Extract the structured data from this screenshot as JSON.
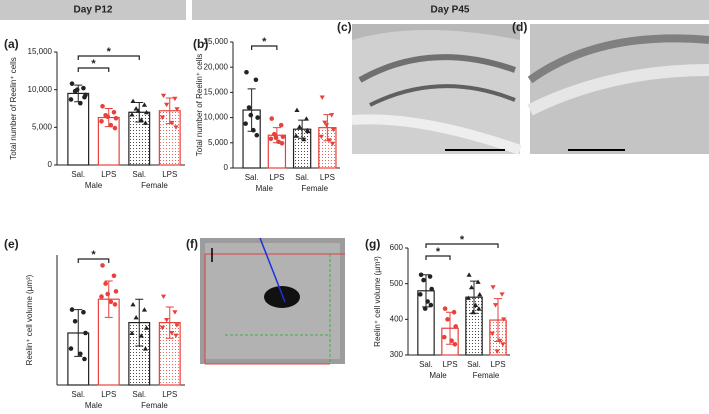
{
  "headers": [
    "Day P12",
    "Day P45"
  ],
  "image_panels": [
    "(c)",
    "(d)",
    "(f)"
  ],
  "chart_data": [
    {
      "type": "bar",
      "label": "(a)",
      "ylabel": "Total number of Reelin⁺ cells",
      "categories": [
        "Sal.",
        "LPS",
        "Sal.",
        "LPS"
      ],
      "groups": [
        "Male",
        "Female"
      ],
      "values": [
        9500,
        6300,
        7000,
        7200
      ],
      "errors": [
        1100,
        1200,
        1300,
        1700
      ],
      "points": [
        [
          10800,
          10200,
          9800,
          9300,
          8700,
          8200,
          9000,
          10000
        ],
        [
          7800,
          7000,
          6600,
          6200,
          5800,
          5300,
          4900,
          6400
        ],
        [
          8500,
          8000,
          7500,
          7000,
          6700,
          6000,
          5600,
          7200
        ],
        [
          9200,
          8800,
          8000,
          7400,
          6300,
          5600,
          5000
        ]
      ],
      "colors": [
        "#222222",
        "#e8413c",
        "#222222",
        "#e8413c"
      ],
      "hatch": [
        false,
        false,
        true,
        true
      ],
      "markers": [
        "circle",
        "circle",
        "triangle-up",
        "triangle-down"
      ],
      "ylim": [
        0,
        15000
      ],
      "yticks": [
        0,
        {
          "value": 5000,
          "label": "5,000"
        },
        {
          "value": 10000,
          "label": "10,000"
        },
        {
          "value": 15000,
          "label": "15,000"
        }
      ],
      "significance": [
        {
          "from": 0,
          "to": 1,
          "label": "*"
        },
        {
          "from": 0,
          "to": 2,
          "label": "*"
        }
      ]
    },
    {
      "type": "bar",
      "label": "(b)",
      "ylabel": "Total number of Reelin⁺ cells",
      "categories": [
        "Sal.",
        "LPS",
        "Sal.",
        "LPS"
      ],
      "groups": [
        "Male",
        "Female"
      ],
      "values": [
        11500,
        6500,
        7700,
        8000
      ],
      "errors": [
        4200,
        1500,
        1800,
        2600
      ],
      "points": [
        [
          19000,
          17500,
          12000,
          10000,
          8800,
          7500,
          6500,
          10500
        ],
        [
          9800,
          8500,
          6700,
          6200,
          5800,
          5200,
          4900,
          6000
        ],
        [
          11500,
          9800,
          8200,
          7300,
          6400,
          5700,
          7500
        ],
        [
          14000,
          10500,
          9000,
          7600,
          6200,
          5500,
          4800,
          8500
        ]
      ],
      "colors": [
        "#222222",
        "#e8413c",
        "#222222",
        "#e8413c"
      ],
      "hatch": [
        false,
        false,
        true,
        true
      ],
      "markers": [
        "circle",
        "circle",
        "triangle-up",
        "triangle-down"
      ],
      "ylim": [
        0,
        25000
      ],
      "yticks": [
        0,
        {
          "value": 5000,
          "label": "5,000"
        },
        {
          "value": 10000,
          "label": "10,000"
        },
        {
          "value": 15000,
          "label": "15,000"
        },
        {
          "value": 20000,
          "label": "20,000"
        },
        {
          "value": 25000,
          "label": "25,000"
        }
      ],
      "significance": [
        {
          "from": 0,
          "to": 1,
          "label": "*"
        }
      ]
    },
    {
      "type": "bar",
      "label": "(e)",
      "ylabel": "Reelin⁺ cell volume (µm³)",
      "categories": [
        "Sal.",
        "LPS",
        "Sal.",
        "LPS"
      ],
      "groups": [
        "Male",
        "Female"
      ],
      "values": [
        700,
        830,
        740,
        740
      ],
      "errors": [
        90,
        70,
        90,
        60
      ],
      "points": [
        [
          790,
          780,
          745,
          700,
          640,
          620,
          600
        ],
        [
          960,
          920,
          890,
          860,
          840,
          820,
          810,
          850
        ],
        [
          810,
          790,
          760,
          720,
          700,
          690,
          640
        ],
        [
          840,
          780,
          750,
          730,
          720,
          700,
          690
        ]
      ],
      "colors": [
        "#222222",
        "#e8413c",
        "#222222",
        "#e8413c"
      ],
      "hatch": [
        false,
        false,
        true,
        true
      ],
      "markers": [
        "circle",
        "circle",
        "triangle-up",
        "triangle-down"
      ],
      "ylim": [
        500,
        1000
      ],
      "significance": [
        {
          "from": 0,
          "to": 1,
          "label": "*"
        }
      ]
    },
    {
      "type": "bar",
      "label": "(g)",
      "ylabel": "Reelin⁺ cell volume (µm³)",
      "categories": [
        "Sal.",
        "LPS",
        "Sal.",
        "LPS"
      ],
      "groups": [
        "Male",
        "Female"
      ],
      "values": [
        480,
        375,
        462,
        398
      ],
      "errors": [
        45,
        45,
        45,
        60
      ],
      "points": [
        [
          525,
          520,
          510,
          485,
          470,
          450,
          440,
          430
        ],
        [
          430,
          420,
          400,
          380,
          350,
          340,
          330
        ],
        [
          525,
          505,
          490,
          470,
          460,
          440,
          430,
          420
        ],
        [
          490,
          470,
          440,
          400,
          360,
          340,
          330,
          310
        ]
      ],
      "colors": [
        "#222222",
        "#e8413c",
        "#222222",
        "#e8413c"
      ],
      "hatch": [
        false,
        false,
        true,
        true
      ],
      "markers": [
        "circle",
        "circle",
        "triangle-up",
        "triangle-down"
      ],
      "ylim": [
        300,
        600
      ],
      "yticks": [
        300,
        400,
        500,
        600
      ],
      "significance": [
        {
          "from": 0,
          "to": 1,
          "label": "*"
        },
        {
          "from": 0,
          "to": 3,
          "label": "*"
        }
      ]
    }
  ]
}
